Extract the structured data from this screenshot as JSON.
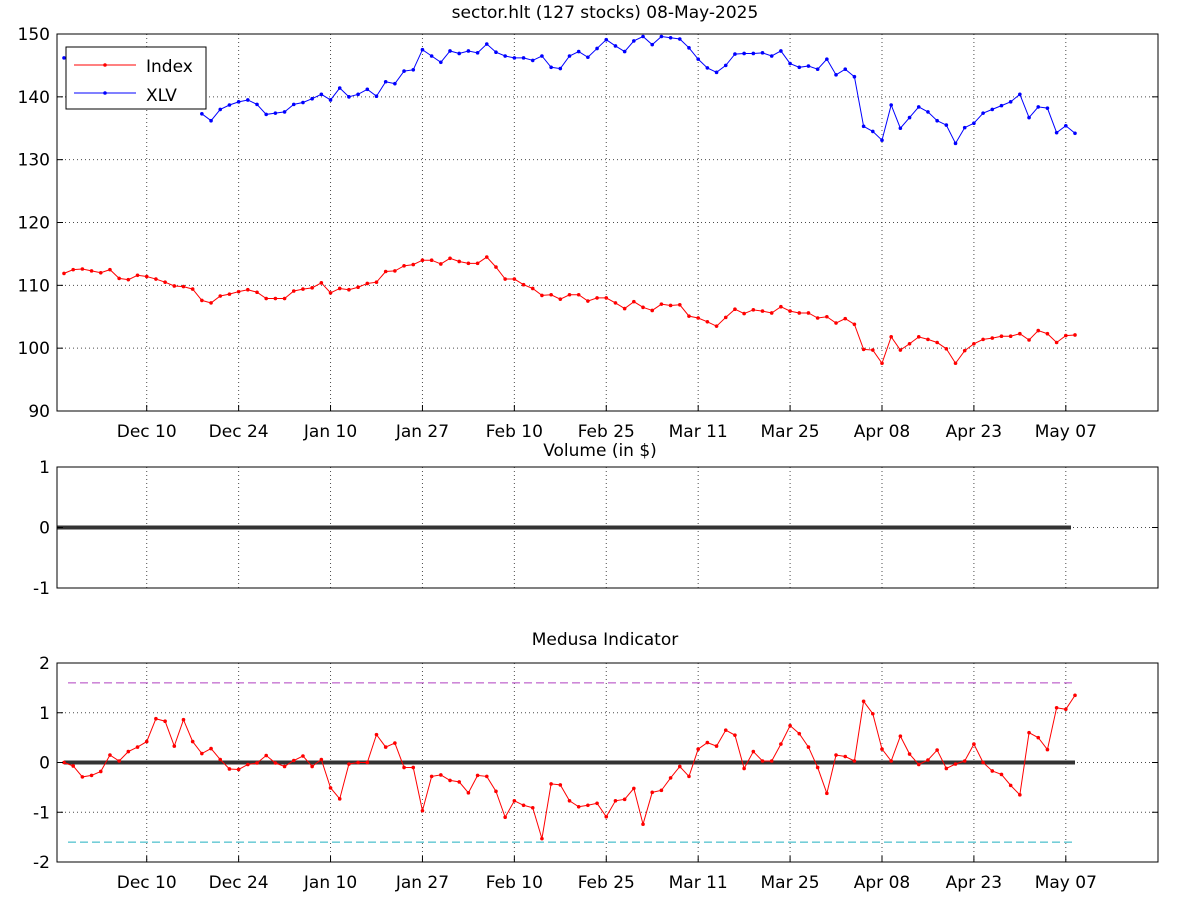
{
  "colors": {
    "index": "#ff0000",
    "xlv": "#0000ff",
    "zero_line": "#333333",
    "upper_threshold": "#b040c0",
    "lower_threshold": "#20b0c0"
  },
  "chart_data": [
    {
      "type": "line",
      "title": "sector.hlt (127 stocks)    08-May-2025",
      "ylim": [
        90,
        150
      ],
      "yticks": [
        "90",
        "100",
        "110",
        "120",
        "130",
        "140",
        "150"
      ],
      "xticks": [
        "Dec 10",
        "Dec 24",
        "Jan 10",
        "Jan 27",
        "Feb 10",
        "Feb 25",
        "Mar 11",
        "Mar 25",
        "Apr 08",
        "Apr 23",
        "May 07"
      ],
      "grid": true,
      "legend": "top-left",
      "series": [
        {
          "name": "Index",
          "values": [
            111.9,
            112.5,
            112.6,
            112.3,
            112.0,
            112.5,
            111.1,
            110.9,
            111.6,
            111.4,
            111.0,
            110.5,
            109.9,
            109.8,
            109.4,
            107.6,
            107.2,
            108.3,
            108.6,
            109.0,
            109.3,
            108.9,
            107.9,
            107.9,
            107.9,
            109.1,
            109.4,
            109.6,
            110.4,
            108.8,
            109.5,
            109.3,
            109.7,
            110.3,
            110.5,
            112.2,
            112.3,
            113.1,
            113.3,
            114.0,
            114.0,
            113.4,
            114.3,
            113.8,
            113.5,
            113.5,
            114.5,
            112.9,
            111.0,
            111.0,
            110.1,
            109.5,
            108.4,
            108.5,
            107.8,
            108.5,
            108.5,
            107.5,
            108.0,
            108.0,
            107.2,
            106.3,
            107.4,
            106.5,
            106.0,
            107.0,
            106.8,
            106.9,
            105.1,
            104.8,
            104.2,
            103.5,
            104.9,
            106.2,
            105.5,
            106.1,
            105.9,
            105.6,
            106.6,
            105.9,
            105.6,
            105.6,
            104.8,
            105.0,
            104.0,
            104.7,
            103.8,
            99.8,
            99.7,
            97.6,
            101.8,
            99.7,
            100.7,
            101.8,
            101.4,
            100.9,
            99.9,
            97.6,
            99.6,
            100.7,
            101.4,
            101.6,
            101.9,
            101.9,
            102.3,
            101.3,
            102.8,
            102.3,
            100.9,
            102.0,
            102.1
          ]
        },
        {
          "name": "XLV",
          "values": [
            146.2,
            null,
            null,
            null,
            null,
            null,
            null,
            null,
            null,
            null,
            null,
            null,
            null,
            null,
            null,
            137.3,
            136.2,
            138.0,
            138.7,
            139.2,
            139.5,
            138.8,
            137.2,
            137.4,
            137.6,
            138.8,
            139.1,
            139.7,
            140.4,
            139.5,
            141.4,
            140.0,
            140.4,
            141.2,
            140.1,
            142.4,
            142.1,
            144.1,
            144.3,
            147.5,
            146.5,
            145.5,
            147.3,
            146.9,
            147.3,
            147.0,
            148.4,
            147.1,
            146.5,
            146.2,
            146.2,
            145.8,
            146.5,
            144.7,
            144.5,
            146.5,
            147.2,
            146.3,
            147.7,
            149.1,
            148.1,
            147.2,
            148.9,
            149.6,
            148.3,
            149.6,
            149.4,
            149.2,
            147.8,
            146.0,
            144.6,
            143.9,
            145.0,
            146.8,
            146.9,
            146.9,
            147.0,
            146.5,
            147.3,
            145.3,
            144.7,
            144.9,
            144.4,
            146.0,
            143.5,
            144.4,
            143.2,
            135.3,
            134.5,
            133.1,
            138.7,
            135.0,
            136.7,
            138.4,
            137.6,
            136.2,
            135.5,
            132.6,
            135.1,
            135.8,
            137.4,
            138.0,
            138.6,
            139.2,
            140.4,
            136.7,
            138.4,
            138.2,
            134.3,
            135.4,
            134.2
          ]
        }
      ]
    },
    {
      "type": "line",
      "title": "Volume (in $)",
      "ylim": [
        -1,
        1
      ],
      "yticks": [
        "-1",
        "0",
        "1"
      ],
      "grid": true,
      "series": [
        {
          "values": [
            0,
            0
          ]
        }
      ]
    },
    {
      "type": "line",
      "title": "Medusa Indicator",
      "ylim": [
        -2,
        2
      ],
      "yticks": [
        "-2",
        "-1",
        "0",
        "1",
        "2"
      ],
      "xticks": [
        "Dec 10",
        "Dec 24",
        "Jan 10",
        "Jan 27",
        "Feb 10",
        "Feb 25",
        "Mar 11",
        "Mar 25",
        "Apr 08",
        "Apr 23",
        "May 07"
      ],
      "grid": true,
      "thresholds": [
        1.6,
        -1.6
      ],
      "series": [
        {
          "values": [
            0.0,
            -0.07,
            -0.29,
            -0.26,
            -0.18,
            0.15,
            0.03,
            0.22,
            0.31,
            0.42,
            0.88,
            0.83,
            0.33,
            0.86,
            0.42,
            0.18,
            0.28,
            0.06,
            -0.13,
            -0.14,
            -0.04,
            -0.01,
            0.14,
            -0.01,
            -0.08,
            0.04,
            0.13,
            -0.08,
            0.06,
            -0.51,
            -0.73,
            -0.03,
            0.0,
            0.0,
            0.56,
            0.31,
            0.39,
            -0.1,
            -0.1,
            -0.97,
            -0.28,
            -0.25,
            -0.36,
            -0.39,
            -0.61,
            -0.26,
            -0.28,
            -0.58,
            -1.1,
            -0.77,
            -0.86,
            -0.91,
            -1.53,
            -0.43,
            -0.45,
            -0.77,
            -0.89,
            -0.86,
            -0.82,
            -1.09,
            -0.77,
            -0.74,
            -0.52,
            -1.24,
            -0.6,
            -0.56,
            -0.31,
            -0.08,
            -0.28,
            0.27,
            0.4,
            0.33,
            0.65,
            0.55,
            -0.12,
            0.22,
            0.03,
            0.03,
            0.37,
            0.74,
            0.58,
            0.31,
            -0.1,
            -0.62,
            0.15,
            0.12,
            0.03,
            1.23,
            0.98,
            0.27,
            0.03,
            0.53,
            0.17,
            -0.04,
            0.05,
            0.25,
            -0.12,
            -0.03,
            0.03,
            0.37,
            0.0,
            -0.17,
            -0.24,
            -0.46,
            -0.65,
            0.6,
            0.5,
            0.26,
            1.1,
            1.07,
            1.35
          ]
        }
      ]
    }
  ]
}
